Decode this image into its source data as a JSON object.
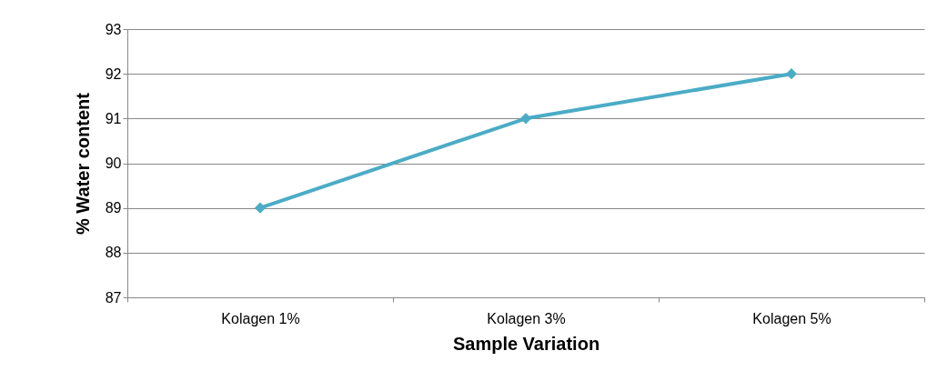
{
  "chart_data": {
    "type": "line",
    "xlabel": "Sample Variation",
    "ylabel": "% Water content",
    "categories": [
      "Kolagen 1%",
      "Kolagen 3%",
      "Kolagen 5%"
    ],
    "series": [
      {
        "color": "#4bacc6",
        "values": [
          89,
          91,
          92
        ]
      }
    ],
    "ylim": [
      87,
      93
    ],
    "yticks": [
      87,
      88,
      89,
      90,
      91,
      92,
      93
    ],
    "grid": "y",
    "marker": "diamond",
    "line_style": "solid",
    "legend": false
  }
}
